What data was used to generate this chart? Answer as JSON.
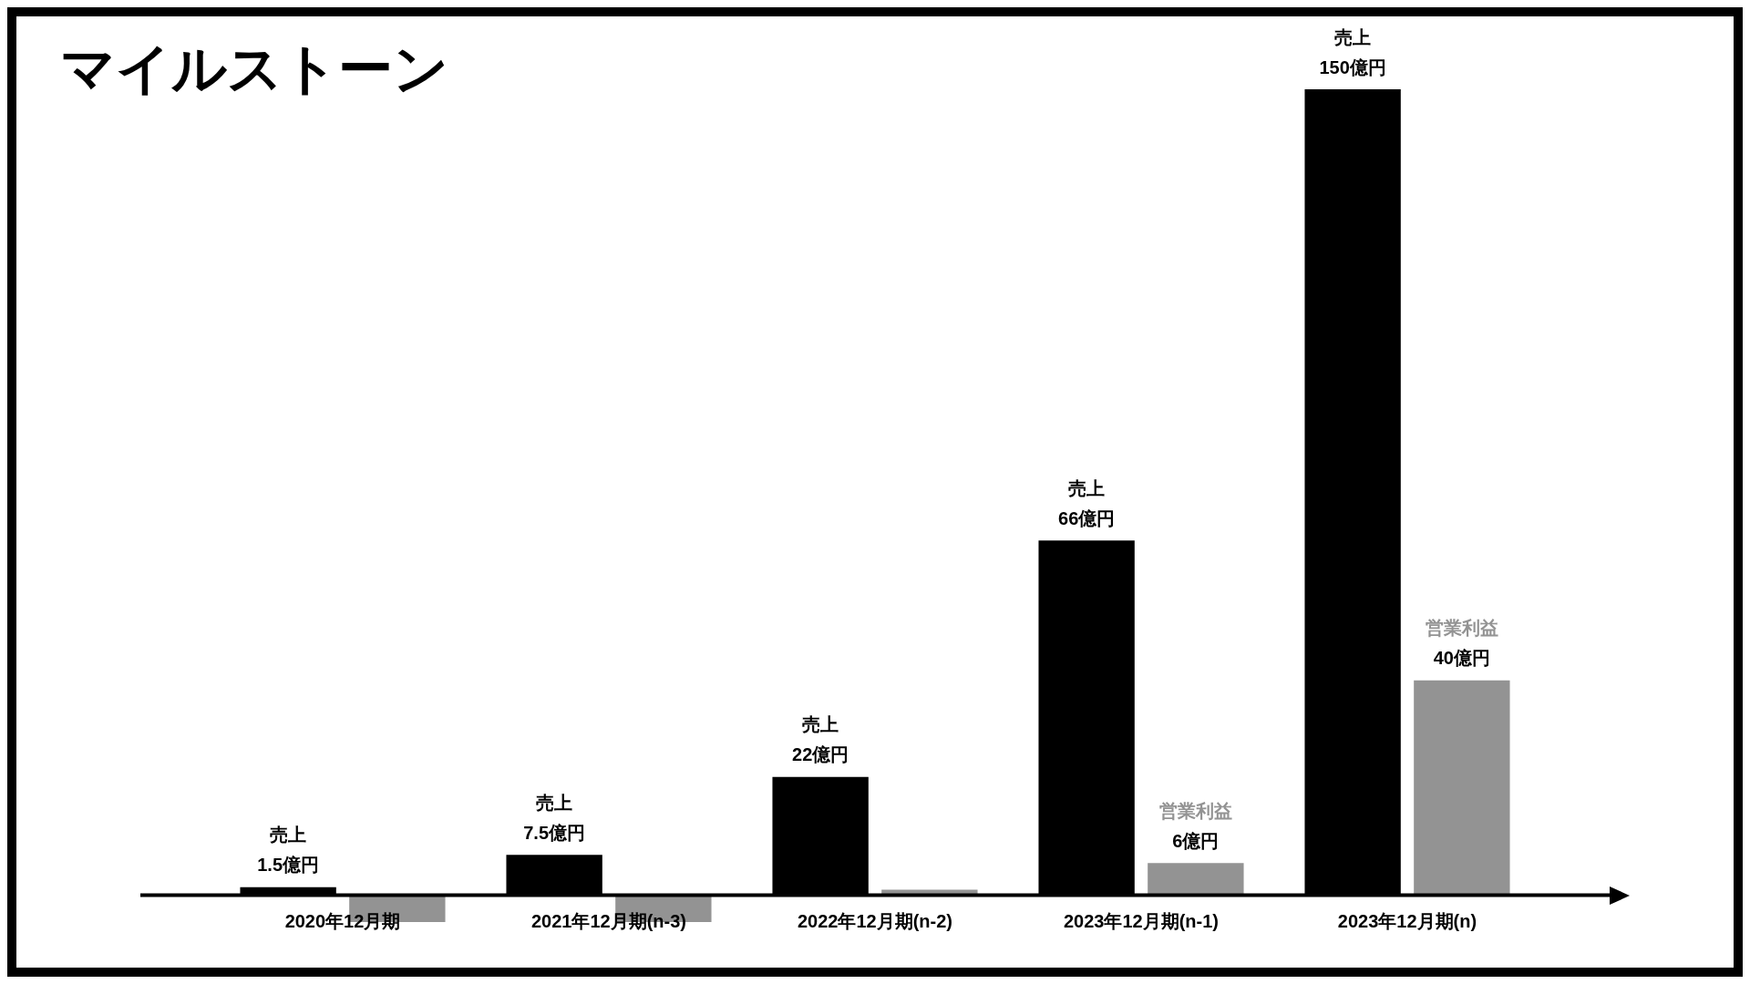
{
  "chart_data": {
    "type": "bar",
    "title": "マイルストーン",
    "legend": false,
    "tick_labels": false,
    "categories": [
      "2020年12月期",
      "2021年12月期(n-3)",
      "2022年12月期(n-2)",
      "2023年12月期(n-1)",
      "2023年12月期(n)"
    ],
    "series": [
      {
        "name": "売上",
        "color": "#000000",
        "values": [
          1.5,
          7.5,
          22,
          66,
          150
        ],
        "value_labels": [
          "1.5億円",
          "7.5億円",
          "22億円",
          "66億円",
          "150億円"
        ]
      },
      {
        "name": "営業利益",
        "color": "#939393",
        "values": [
          -5,
          -5,
          1,
          6,
          40
        ],
        "value_labels": [
          null,
          null,
          null,
          "6億円",
          "40億円"
        ]
      }
    ]
  }
}
